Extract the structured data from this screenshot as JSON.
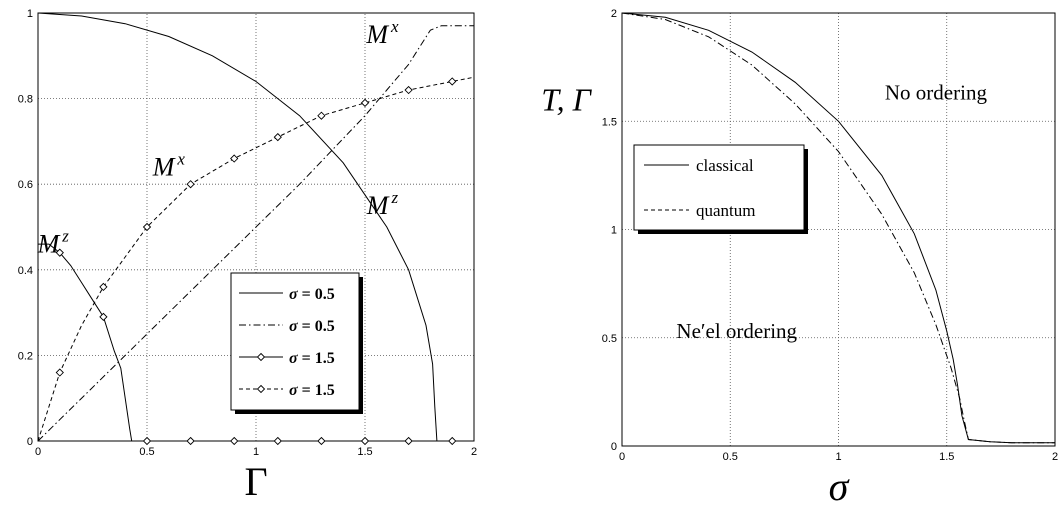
{
  "chart_data": [
    {
      "type": "line",
      "xlabel": "Γ",
      "ylabel": "",
      "xlim": [
        0,
        2
      ],
      "ylim": [
        0,
        1
      ],
      "xticks": [
        "0",
        "0.5",
        "1",
        "1.5",
        "2"
      ],
      "yticks": [
        "0",
        "0.2",
        "0.4",
        "0.6",
        "0.8",
        "1"
      ],
      "grid": true,
      "legend_position": "lower-right",
      "annotations": [
        {
          "base": "M",
          "sup": "x",
          "x": 1.58,
          "y": 0.93
        },
        {
          "base": "M",
          "sup": "x",
          "x": 0.6,
          "y": 0.62
        },
        {
          "base": "M",
          "sup": "z",
          "x": 0.07,
          "y": 0.44
        },
        {
          "base": "M",
          "sup": "z",
          "x": 1.58,
          "y": 0.53
        }
      ],
      "series": [
        {
          "name": "σ = 0.5",
          "style": "solid",
          "marker": false,
          "x": [
            0,
            0.2,
            0.4,
            0.6,
            0.8,
            1.0,
            1.2,
            1.4,
            1.6,
            1.7,
            1.78,
            1.81,
            1.82,
            1.83,
            2.0
          ],
          "y": [
            1.0,
            0.993,
            0.975,
            0.945,
            0.9,
            0.84,
            0.76,
            0.65,
            0.5,
            0.4,
            0.27,
            0.18,
            0.08,
            0.0,
            0.0
          ]
        },
        {
          "name": "σ = 0.5",
          "style": "dashdot",
          "marker": false,
          "x": [
            0,
            0.4,
            0.8,
            1.2,
            1.5,
            1.6,
            1.7,
            1.75,
            1.8,
            1.85,
            1.9,
            2.0
          ],
          "y": [
            0.0,
            0.2,
            0.4,
            0.6,
            0.76,
            0.82,
            0.88,
            0.92,
            0.96,
            0.97,
            0.97,
            0.97
          ]
        },
        {
          "name": "σ = 1.5",
          "style": "solid",
          "marker": true,
          "x": [
            0,
            0.05,
            0.1,
            0.15,
            0.2,
            0.25,
            0.3,
            0.35,
            0.38,
            0.4,
            0.42,
            0.43,
            0.5,
            0.7,
            0.9,
            1.1,
            1.3,
            1.5,
            1.7,
            1.9,
            2.0
          ],
          "y": [
            0.46,
            0.46,
            0.44,
            0.41,
            0.37,
            0.33,
            0.29,
            0.21,
            0.17,
            0.1,
            0.03,
            0.0,
            0.0,
            0.0,
            0.0,
            0.0,
            0.0,
            0.0,
            0.0,
            0.0,
            0.0
          ],
          "marker_x": [
            0.1,
            0.3,
            0.5,
            0.7,
            0.9,
            1.1,
            1.3,
            1.5,
            1.7,
            1.9
          ],
          "marker_y": [
            0.44,
            0.29,
            0.0,
            0.0,
            0.0,
            0.0,
            0.0,
            0.0,
            0.0,
            0.0
          ]
        },
        {
          "name": "σ = 1.5",
          "style": "dashed",
          "marker": true,
          "x": [
            0,
            0.1,
            0.2,
            0.3,
            0.5,
            0.7,
            0.9,
            1.1,
            1.3,
            1.5,
            1.7,
            1.9,
            2.0
          ],
          "y": [
            0.0,
            0.16,
            0.27,
            0.36,
            0.5,
            0.6,
            0.66,
            0.71,
            0.76,
            0.79,
            0.82,
            0.84,
            0.85
          ],
          "marker_x": [
            0.1,
            0.3,
            0.5,
            0.7,
            0.9,
            1.1,
            1.3,
            1.5,
            1.7,
            1.9
          ],
          "marker_y": [
            0.16,
            0.36,
            0.5,
            0.6,
            0.66,
            0.71,
            0.76,
            0.79,
            0.82,
            0.84
          ]
        }
      ]
    },
    {
      "type": "line",
      "xlabel": "σ",
      "ylabel": "T, Γ",
      "xlim": [
        0,
        2
      ],
      "ylim": [
        0,
        2
      ],
      "xticks": [
        "0",
        "0.5",
        "1",
        "1.5",
        "2"
      ],
      "yticks": [
        "0",
        "0.5",
        "1",
        "1.5",
        "2"
      ],
      "grid": true,
      "legend_position": "upper-left",
      "annotations": [
        {
          "text": "No ordering",
          "x": 1.45,
          "y": 1.6
        },
        {
          "text": "Ne′el ordering",
          "x": 0.53,
          "y": 0.5
        }
      ],
      "series": [
        {
          "name": "classical",
          "style": "solid",
          "x": [
            0,
            0.2,
            0.4,
            0.6,
            0.8,
            1.0,
            1.2,
            1.35,
            1.45,
            1.5,
            1.53,
            1.55,
            1.57,
            1.6,
            1.7,
            1.8,
            1.9,
            2.0
          ],
          "y": [
            2.0,
            1.98,
            1.92,
            1.82,
            1.68,
            1.5,
            1.25,
            0.98,
            0.72,
            0.53,
            0.4,
            0.28,
            0.14,
            0.03,
            0.02,
            0.015,
            0.015,
            0.015
          ]
        },
        {
          "name": "quantum",
          "style": "dashdot",
          "x": [
            0,
            0.2,
            0.4,
            0.6,
            0.8,
            1.0,
            1.2,
            1.35,
            1.45,
            1.52,
            1.56,
            1.58,
            1.6,
            1.7,
            1.8,
            1.9,
            2.0
          ],
          "y": [
            2.0,
            1.97,
            1.89,
            1.76,
            1.58,
            1.36,
            1.07,
            0.8,
            0.56,
            0.36,
            0.22,
            0.12,
            0.03,
            0.02,
            0.015,
            0.015,
            0.015
          ]
        }
      ]
    }
  ]
}
